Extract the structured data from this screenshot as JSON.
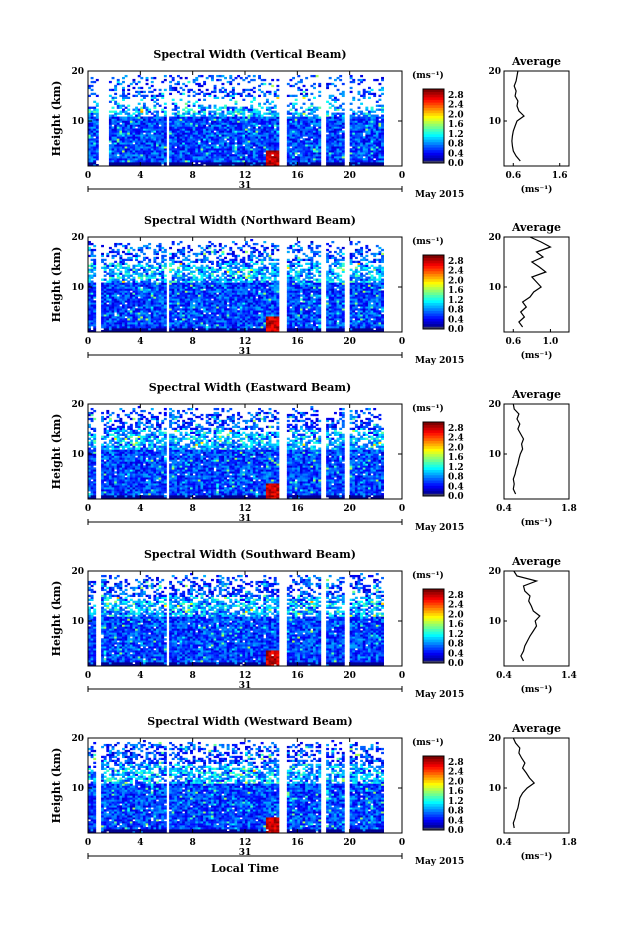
{
  "chart_data": [
    {
      "type": "heatmap",
      "title": "Spectral Width (Vertical Beam)",
      "ylabel": "Height (km)",
      "x_ticks": [
        "0",
        "4",
        "8",
        "12",
        "16",
        "20",
        "0"
      ],
      "y_ticks": [
        "10",
        "20"
      ],
      "day_label": "31",
      "month_label": "May 2015",
      "colorbar_unit": "(ms⁻¹)",
      "colorbar_ticks": [
        "0.0",
        "0.4",
        "0.8",
        "1.2",
        "1.6",
        "2.0",
        "2.4",
        "2.8"
      ],
      "xlim": [
        0,
        24
      ],
      "ylim": [
        1,
        20
      ],
      "gaps": [
        [
          0.8,
          1.6
        ],
        [
          5.9,
          6.2
        ],
        [
          14.7,
          15.1
        ],
        [
          17.9,
          18.2
        ],
        [
          19.7,
          20.0
        ]
      ],
      "average": {
        "title": "Average",
        "xlabel": "(ms⁻¹)",
        "x_ticks": [
          "0.6",
          "1.6"
        ],
        "xlim": [
          0.4,
          1.8
        ],
        "y": [
          2,
          3,
          4,
          5,
          6,
          7,
          8,
          9,
          10,
          11,
          12,
          13,
          14,
          15,
          16,
          17,
          18,
          19,
          20
        ],
        "x": [
          0.75,
          0.66,
          0.6,
          0.58,
          0.57,
          0.58,
          0.6,
          0.64,
          0.68,
          0.83,
          0.72,
          0.68,
          0.7,
          0.64,
          0.66,
          0.62,
          0.66,
          0.68,
          0.7
        ]
      }
    },
    {
      "type": "heatmap",
      "title": "Spectral Width (Northward Beam)",
      "ylabel": "Height (km)",
      "x_ticks": [
        "0",
        "4",
        "8",
        "12",
        "16",
        "20",
        "0"
      ],
      "y_ticks": [
        "10",
        "20"
      ],
      "day_label": "31",
      "month_label": "May 2015",
      "colorbar_unit": "(ms⁻¹)",
      "colorbar_ticks": [
        "0.0",
        "0.4",
        "0.8",
        "1.2",
        "1.6",
        "2.0",
        "2.4",
        "2.8"
      ],
      "xlim": [
        0,
        24
      ],
      "ylim": [
        1,
        20
      ],
      "gaps": [
        [
          0.7,
          1.0
        ],
        [
          5.9,
          6.2
        ],
        [
          14.7,
          15.1
        ],
        [
          17.9,
          18.2
        ],
        [
          19.7,
          20.0
        ]
      ],
      "average": {
        "title": "Average",
        "xlabel": "(ms⁻¹)",
        "x_ticks": [
          "0.6",
          "1.0"
        ],
        "xlim": [
          0.5,
          1.2
        ],
        "y": [
          2,
          3,
          4,
          5,
          6,
          7,
          8,
          9,
          10,
          11,
          12,
          13,
          14,
          15,
          16,
          17,
          18,
          19,
          20
        ],
        "x": [
          0.7,
          0.66,
          0.72,
          0.68,
          0.74,
          0.7,
          0.78,
          0.82,
          0.9,
          0.85,
          0.8,
          0.95,
          0.88,
          0.8,
          0.92,
          0.85,
          1.0,
          0.9,
          0.78
        ]
      }
    },
    {
      "type": "heatmap",
      "title": "Spectral Width (Eastward Beam)",
      "ylabel": "Height (km)",
      "x_ticks": [
        "0",
        "4",
        "8",
        "12",
        "16",
        "20",
        "0"
      ],
      "y_ticks": [
        "10",
        "20"
      ],
      "day_label": "31",
      "month_label": "May 2015",
      "colorbar_unit": "(ms⁻¹)",
      "colorbar_ticks": [
        "0.0",
        "0.4",
        "0.8",
        "1.2",
        "1.6",
        "2.0",
        "2.4",
        "2.8"
      ],
      "xlim": [
        0,
        24
      ],
      "ylim": [
        1,
        20
      ],
      "gaps": [
        [
          0.7,
          1.0
        ],
        [
          5.9,
          6.2
        ],
        [
          14.7,
          15.1
        ],
        [
          17.9,
          18.2
        ],
        [
          19.7,
          20.0
        ]
      ],
      "average": {
        "title": "Average",
        "xlabel": "(ms⁻¹)",
        "x_ticks": [
          "0.4",
          "1.8"
        ],
        "xlim": [
          0.4,
          1.8
        ],
        "y": [
          2,
          3,
          4,
          5,
          6,
          7,
          8,
          9,
          10,
          11,
          12,
          13,
          14,
          15,
          16,
          17,
          18,
          19,
          20
        ],
        "x": [
          0.65,
          0.6,
          0.62,
          0.6,
          0.64,
          0.66,
          0.7,
          0.72,
          0.75,
          0.8,
          0.78,
          0.82,
          0.76,
          0.7,
          0.74,
          0.68,
          0.72,
          0.62,
          0.6
        ]
      }
    },
    {
      "type": "heatmap",
      "title": "Spectral Width (Southward Beam)",
      "ylabel": "Height (km)",
      "x_ticks": [
        "0",
        "4",
        "8",
        "12",
        "16",
        "20",
        "0"
      ],
      "y_ticks": [
        "10",
        "20"
      ],
      "day_label": "31",
      "month_label": "May 2015",
      "colorbar_unit": "(ms⁻¹)",
      "colorbar_ticks": [
        "0.0",
        "0.4",
        "0.8",
        "1.2",
        "1.6",
        "2.0",
        "2.4",
        "2.8"
      ],
      "xlim": [
        0,
        24
      ],
      "ylim": [
        1,
        20
      ],
      "gaps": [
        [
          0.7,
          1.0
        ],
        [
          5.9,
          6.2
        ],
        [
          14.7,
          15.1
        ],
        [
          17.9,
          18.2
        ],
        [
          19.7,
          20.0
        ]
      ],
      "average": {
        "title": "Average",
        "xlabel": "(ms⁻¹)",
        "x_ticks": [
          "0.4",
          "1.4"
        ],
        "xlim": [
          0.4,
          1.4
        ],
        "y": [
          2,
          3,
          4,
          5,
          6,
          7,
          8,
          9,
          10,
          11,
          12,
          13,
          14,
          15,
          16,
          17,
          18,
          19,
          20
        ],
        "x": [
          0.7,
          0.66,
          0.7,
          0.72,
          0.76,
          0.8,
          0.85,
          0.9,
          0.88,
          0.95,
          0.85,
          0.82,
          0.78,
          0.8,
          0.72,
          0.7,
          0.9,
          0.6,
          0.55
        ]
      }
    },
    {
      "type": "heatmap",
      "title": "Spectral Width (Westward Beam)",
      "ylabel": "Height (km)",
      "x_ticks": [
        "0",
        "4",
        "8",
        "12",
        "16",
        "20",
        "0"
      ],
      "y_ticks": [
        "10",
        "20"
      ],
      "day_label": "31",
      "month_label": "May 2015",
      "xlabel": "Local Time",
      "colorbar_unit": "(ms⁻¹)",
      "colorbar_ticks": [
        "0.0",
        "0.4",
        "0.8",
        "1.2",
        "1.6",
        "2.0",
        "2.4",
        "2.8"
      ],
      "xlim": [
        0,
        24
      ],
      "ylim": [
        1,
        20
      ],
      "gaps": [
        [
          0.7,
          1.0
        ],
        [
          5.9,
          6.2
        ],
        [
          14.7,
          15.1
        ],
        [
          17.9,
          18.2
        ],
        [
          19.7,
          20.0
        ]
      ],
      "average": {
        "title": "Average",
        "xlabel": "(ms⁻¹)",
        "x_ticks": [
          "0.4",
          "1.8"
        ],
        "xlim": [
          0.4,
          1.8
        ],
        "y": [
          2,
          3,
          4,
          5,
          6,
          7,
          8,
          9,
          10,
          11,
          12,
          13,
          14,
          15,
          16,
          17,
          18,
          19,
          20
        ],
        "x": [
          0.62,
          0.6,
          0.64,
          0.66,
          0.7,
          0.72,
          0.74,
          0.8,
          0.9,
          1.05,
          0.95,
          0.88,
          0.8,
          0.85,
          0.78,
          0.72,
          0.74,
          0.65,
          0.6
        ]
      }
    }
  ]
}
